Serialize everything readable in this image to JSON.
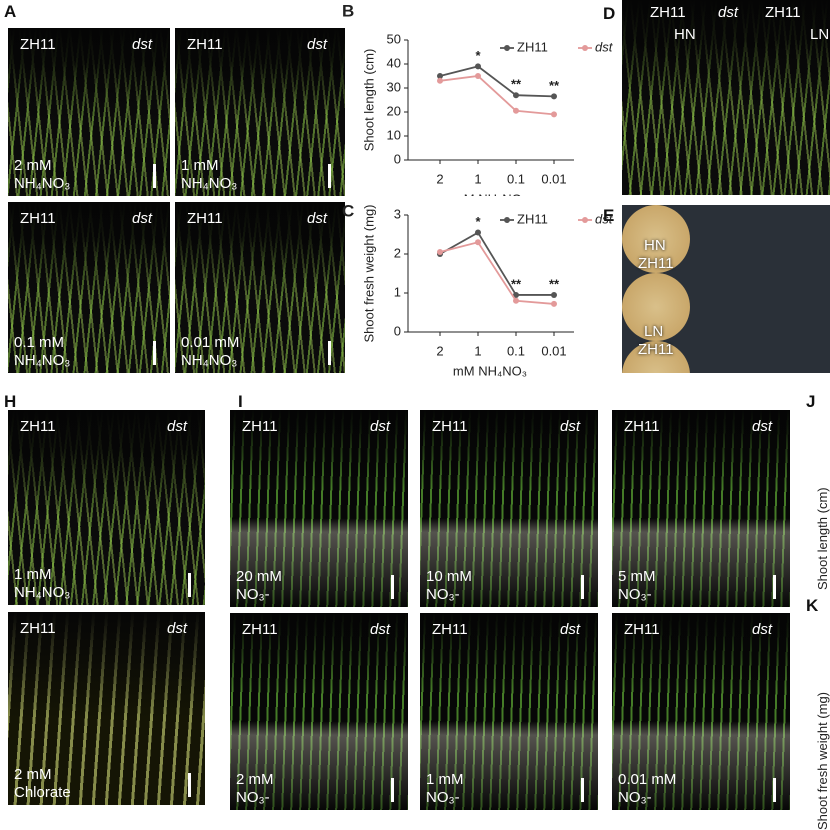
{
  "panel_A": {
    "label": "A",
    "photos": [
      {
        "left": "ZH11",
        "right": "dst",
        "conc": "2 mM",
        "agent": "NH₄NO₃"
      },
      {
        "left": "ZH11",
        "right": "dst",
        "conc": "1 mM",
        "agent": "NH₄NO₃"
      },
      {
        "left": "ZH11",
        "right": "dst",
        "conc": "0.1 mM",
        "agent": "NH₄NO₃"
      },
      {
        "left": "ZH11",
        "right": "dst",
        "conc": "0.01 mM",
        "agent": "NH₄NO₃"
      }
    ]
  },
  "panel_D": {
    "label": "D",
    "genotypes": [
      "ZH11",
      "dst",
      "ZH11"
    ],
    "conditions": [
      "HN",
      "LN"
    ]
  },
  "panel_E": {
    "label": "E",
    "groups": [
      {
        "condition": "HN",
        "genotype": "ZH11"
      },
      {
        "condition": "LN",
        "genotype": "ZH11"
      }
    ]
  },
  "panel_H": {
    "label": "H",
    "photos": [
      {
        "left": "ZH11",
        "right": "dst",
        "conc": "1 mM",
        "agent": "NH₄NO₃"
      },
      {
        "left": "ZH11",
        "right": "dst",
        "conc": "2 mM",
        "agent": "Chlorate"
      }
    ]
  },
  "panel_I": {
    "label": "I",
    "photos": [
      {
        "left": "ZH11",
        "right": "dst",
        "conc": "20 mM",
        "agent": "NO₃-"
      },
      {
        "left": "ZH11",
        "right": "dst",
        "conc": "10 mM",
        "agent": "NO₃-"
      },
      {
        "left": "ZH11",
        "right": "dst",
        "conc": "5 mM",
        "agent": "NO₃-"
      },
      {
        "left": "ZH11",
        "right": "dst",
        "conc": "2 mM",
        "agent": "NO₃-"
      },
      {
        "left": "ZH11",
        "right": "dst",
        "conc": "1 mM",
        "agent": "NO₃-"
      },
      {
        "left": "ZH11",
        "right": "dst",
        "conc": "0.01 mM",
        "agent": "NO₃-"
      }
    ]
  },
  "panel_J": {
    "label": "J",
    "y_label": "Shoot length (cm)"
  },
  "panel_K": {
    "label": "K",
    "y_label": "Shoot fresh weight (mg)"
  },
  "chart_data": [
    {
      "panel": "B",
      "type": "line",
      "y_label": "Shoot length (cm)",
      "x_label": "mM NH₄NO₃",
      "categories": [
        "2",
        "1",
        "0.1",
        "0.01"
      ],
      "series": [
        {
          "name": "ZH11",
          "color": "#555555",
          "values": [
            35,
            39,
            27,
            26.5
          ]
        },
        {
          "name": "dst",
          "color": "#e39a9a",
          "values": [
            33,
            35,
            20.5,
            19
          ]
        }
      ],
      "significance": [
        null,
        "*",
        "**",
        "**"
      ],
      "ylim": [
        0,
        50
      ],
      "yticks": [
        0,
        10,
        20,
        30,
        40,
        50
      ]
    },
    {
      "panel": "C",
      "type": "line",
      "y_label": "Shoot fresh weight (mg)",
      "x_label": "mM NH₄NO₃",
      "categories": [
        "2",
        "1",
        "0.1",
        "0.01"
      ],
      "series": [
        {
          "name": "ZH11",
          "color": "#555555",
          "values": [
            2.0,
            2.55,
            0.95,
            0.95
          ]
        },
        {
          "name": "dst",
          "color": "#e39a9a",
          "values": [
            2.05,
            2.3,
            0.8,
            0.72
          ]
        }
      ],
      "significance": [
        null,
        "*",
        "**",
        "**"
      ],
      "ylim": [
        0,
        3
      ],
      "yticks": [
        0,
        1,
        2,
        3
      ]
    }
  ]
}
